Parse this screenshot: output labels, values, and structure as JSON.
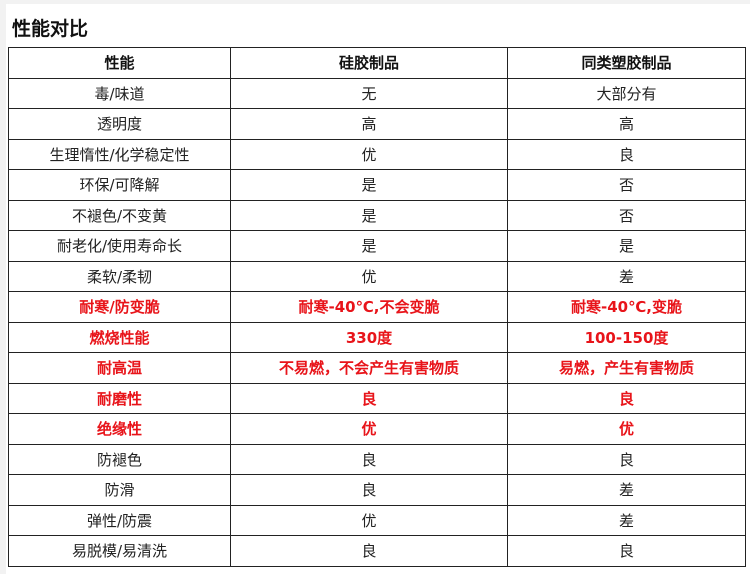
{
  "title": "性能对比",
  "colors": {
    "highlight": "#e8141a",
    "text": "#222222",
    "border": "#222222"
  },
  "table": {
    "headers": [
      "性能",
      "硅胶制品",
      "同类塑胶制品"
    ],
    "rows": [
      {
        "cells": [
          "毒/味道",
          "无",
          "大部分有"
        ],
        "highlight": false
      },
      {
        "cells": [
          "透明度",
          "高",
          "高"
        ],
        "highlight": false
      },
      {
        "cells": [
          "生理惰性/化学稳定性",
          "优",
          "良"
        ],
        "highlight": false
      },
      {
        "cells": [
          "环保/可降解",
          "是",
          "否"
        ],
        "highlight": false
      },
      {
        "cells": [
          "不褪色/不变黄",
          "是",
          "否"
        ],
        "highlight": false
      },
      {
        "cells": [
          "耐老化/使用寿命长",
          "是",
          "是"
        ],
        "highlight": false
      },
      {
        "cells": [
          "柔软/柔韧",
          "优",
          "差"
        ],
        "highlight": false
      },
      {
        "cells": [
          "耐寒/防变脆",
          "耐寒-40℃,不会变脆",
          "耐寒-40℃,变脆"
        ],
        "highlight": true
      },
      {
        "cells": [
          "燃烧性能",
          "330度",
          "100-150度"
        ],
        "highlight": true
      },
      {
        "cells": [
          "耐高温",
          "不易燃，不会产生有害物质",
          "易燃，产生有害物质"
        ],
        "highlight": true
      },
      {
        "cells": [
          "耐磨性",
          "良",
          "良"
        ],
        "highlight": true
      },
      {
        "cells": [
          "绝缘性",
          "优",
          "优"
        ],
        "highlight": true
      },
      {
        "cells": [
          "防褪色",
          "良",
          "良"
        ],
        "highlight": false
      },
      {
        "cells": [
          "防滑",
          "良",
          "差"
        ],
        "highlight": false
      },
      {
        "cells": [
          "弹性/防震",
          "优",
          "差"
        ],
        "highlight": false
      },
      {
        "cells": [
          "易脱模/易清洗",
          "良",
          "良"
        ],
        "highlight": false
      }
    ]
  }
}
